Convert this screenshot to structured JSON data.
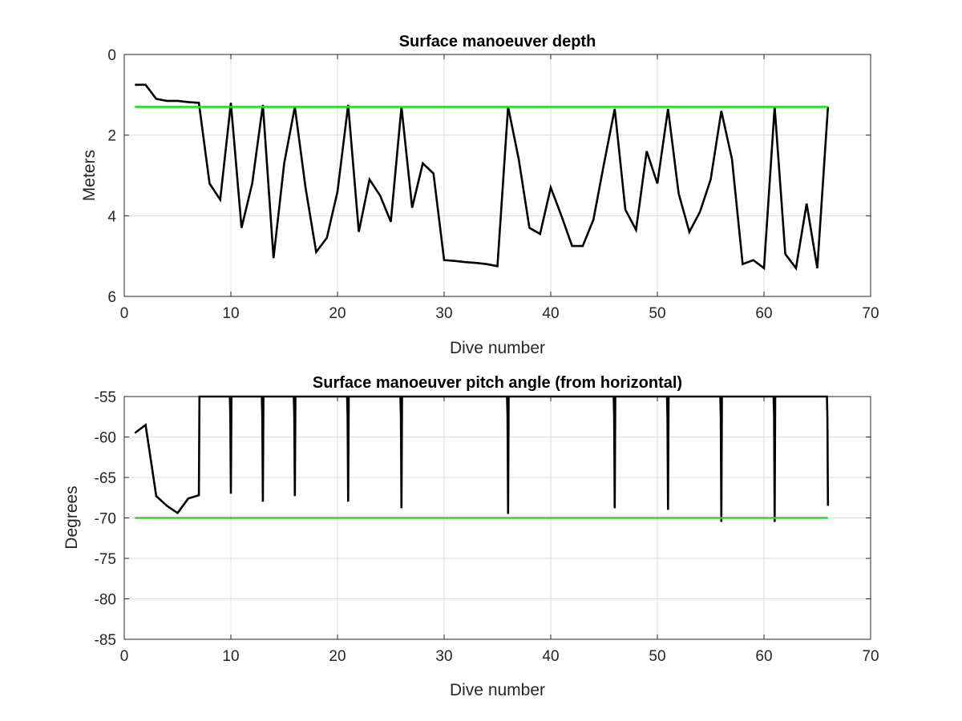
{
  "chart_data": [
    {
      "type": "line",
      "title": "Surface manoeuver depth",
      "xlabel": "Dive number",
      "ylabel": "Meters",
      "xlim": [
        0,
        70
      ],
      "ylim": [
        0,
        6
      ],
      "y_reversed": true,
      "grid": true,
      "xticks": [
        0,
        10,
        20,
        30,
        40,
        50,
        60,
        70
      ],
      "yticks": [
        0,
        2,
        4,
        6
      ],
      "series": [
        {
          "color": "#000000",
          "x": [
            1,
            2,
            3,
            4,
            5,
            6,
            7,
            8,
            9,
            10,
            11,
            12,
            13,
            14,
            15,
            16,
            17,
            18,
            19,
            20,
            21,
            22,
            23,
            24,
            25,
            26,
            27,
            28,
            29,
            30,
            31,
            32,
            33,
            34,
            35,
            36,
            37,
            38,
            39,
            40,
            41,
            42,
            43,
            44,
            45,
            46,
            47,
            48,
            49,
            50,
            51,
            52,
            53,
            54,
            55,
            56,
            57,
            58,
            59,
            60,
            61,
            62,
            63,
            64,
            65,
            66
          ],
          "y": [
            0.75,
            0.75,
            1.1,
            1.15,
            1.15,
            1.18,
            1.2,
            3.2,
            3.6,
            1.2,
            4.3,
            3.2,
            1.25,
            5.05,
            2.7,
            1.3,
            3.3,
            4.9,
            4.55,
            3.4,
            1.25,
            4.4,
            3.1,
            3.5,
            4.15,
            1.3,
            3.8,
            2.7,
            2.95,
            5.1,
            5.12,
            5.15,
            5.17,
            5.2,
            5.25,
            1.3,
            2.6,
            4.3,
            4.45,
            3.3,
            4.0,
            4.75,
            4.75,
            4.1,
            2.7,
            1.35,
            3.85,
            4.35,
            2.4,
            3.2,
            1.35,
            3.45,
            4.4,
            3.9,
            3.1,
            1.4,
            2.6,
            5.2,
            5.1,
            5.3,
            1.3,
            4.95,
            5.3,
            3.7,
            5.3,
            1.3
          ]
        },
        {
          "color": "#22dd22",
          "x": [
            1,
            66
          ],
          "y": [
            1.3,
            1.3
          ]
        }
      ]
    },
    {
      "type": "line",
      "title": "Surface manoeuver pitch angle (from horizontal)",
      "xlabel": "Dive number",
      "ylabel": "Degrees",
      "xlim": [
        0,
        70
      ],
      "ylim": [
        -85,
        -55
      ],
      "grid": true,
      "xticks": [
        0,
        10,
        20,
        30,
        40,
        50,
        60,
        70
      ],
      "yticks": [
        -55,
        -60,
        -65,
        -70,
        -75,
        -80,
        -85
      ],
      "series": [
        {
          "color": "#000000",
          "x": [
            1,
            2,
            3,
            4,
            5,
            6,
            7,
            7.05,
            9.9,
            9.95,
            10,
            10.05,
            12.9,
            12.95,
            13,
            13.05,
            15.9,
            15.95,
            16,
            16.05,
            20.9,
            20.95,
            21,
            21.05,
            25.9,
            25.95,
            26,
            26.05,
            35.9,
            35.95,
            36,
            36.05,
            45.9,
            45.95,
            46,
            46.05,
            50.9,
            50.95,
            51,
            51.05,
            55.9,
            55.95,
            56,
            56.05,
            60.9,
            60.95,
            61,
            61.05,
            65.9,
            65.95,
            66
          ],
          "y": [
            -59.5,
            -58.5,
            -67.3,
            -68.5,
            -69.4,
            -67.6,
            -67.2,
            -55,
            -55,
            -57.5,
            -67,
            -55,
            -55,
            -57.5,
            -68,
            -55,
            -55,
            -57.5,
            -67.3,
            -55,
            -55,
            -57.5,
            -68,
            -55,
            -55,
            -57.5,
            -68.8,
            -55,
            -55,
            -57.5,
            -69.5,
            -55,
            -55,
            -57.5,
            -68.8,
            -55,
            -55,
            -57.5,
            -69,
            -55,
            -55,
            -57.5,
            -70.5,
            -55,
            -55,
            -57.5,
            -70.5,
            -55,
            -55,
            -57.5,
            -68.5
          ]
        },
        {
          "color": "#22dd22",
          "x": [
            1,
            66
          ],
          "y": [
            -70,
            -70
          ]
        }
      ]
    }
  ]
}
